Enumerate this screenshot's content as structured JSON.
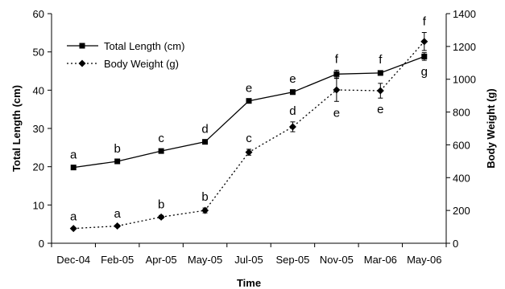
{
  "chart_data": {
    "type": "line",
    "categories": [
      "Dec-04",
      "Feb-05",
      "Apr-05",
      "May-05",
      "Jul-05",
      "Sep-05",
      "Nov-05",
      "Mar-06",
      "May-06"
    ],
    "xlabel": "Time",
    "ylabel_left": "Total Length (cm)",
    "ylabel_right": "Body Weight (g)",
    "ylim_left": [
      0,
      60
    ],
    "yticks_left": [
      0,
      10,
      20,
      30,
      40,
      50,
      60
    ],
    "ylim_right": [
      0,
      1400
    ],
    "yticks_right": [
      0,
      200,
      400,
      600,
      800,
      1000,
      1200,
      1400
    ],
    "grid": false,
    "legend_position": "top-left",
    "series": [
      {
        "name": "Total Length (cm)",
        "axis": "left",
        "line_style": "solid",
        "marker": "square",
        "values": [
          19.8,
          21.4,
          24.1,
          26.5,
          37.2,
          39.5,
          44.2,
          44.5,
          48.8
        ],
        "error": [
          0.4,
          0.4,
          0.4,
          0.5,
          0.5,
          0.6,
          1.0,
          0.6,
          1.0
        ],
        "labels": [
          "a",
          "b",
          "c",
          "d",
          "e",
          "e",
          "f",
          "f",
          "g"
        ],
        "label_position": [
          "above",
          "above",
          "above",
          "above",
          "above",
          "above",
          "above",
          "above",
          "below"
        ]
      },
      {
        "name": "Body Weight (g)",
        "axis": "right",
        "line_style": "dotted",
        "marker": "diamond",
        "values": [
          90,
          105,
          160,
          200,
          555,
          710,
          935,
          930,
          1230
        ],
        "error": [
          5,
          7,
          10,
          15,
          18,
          30,
          70,
          45,
          55
        ],
        "labels": [
          "a",
          "a",
          "b",
          "b",
          "c",
          "d",
          "e",
          "e",
          "f"
        ],
        "label_position": [
          "above",
          "above",
          "above",
          "above",
          "above",
          "above",
          "below",
          "below",
          "above"
        ]
      }
    ]
  }
}
